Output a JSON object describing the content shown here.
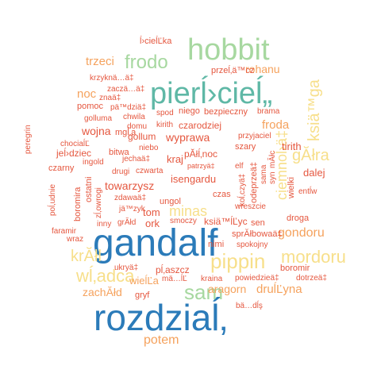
{
  "palette": {
    "blue": "#2b7bb9",
    "green": "#a7d8a0",
    "teal": "#5fb8a6",
    "yellow": "#f7df8a",
    "orange": "#f5a25d",
    "red": "#e5573f"
  },
  "words": [
    {
      "text": "gandalf",
      "color": "blue"
    },
    {
      "text": "rozdziaĺ‚",
      "color": "blue"
    },
    {
      "text": "pierĺ›cieĺ„",
      "color": "teal"
    },
    {
      "text": "hobbit",
      "color": "green"
    },
    {
      "text": "frodo",
      "color": "green"
    },
    {
      "text": "sam",
      "color": "green"
    },
    {
      "text": "pippin",
      "color": "yellow"
    },
    {
      "text": "mordoru",
      "color": "yellow"
    },
    {
      "text": "wĺ‚adca",
      "color": "yellow"
    },
    {
      "text": "krĂłl",
      "color": "yellow"
    },
    {
      "text": "minas",
      "color": "yellow"
    },
    {
      "text": "gĂłra",
      "color": "yellow"
    },
    {
      "text": "ksiä™ga",
      "color": "yellow"
    },
    {
      "text": "ciemnoĺ›ä‡",
      "color": "yellow"
    },
    {
      "text": "potem",
      "color": "orange"
    },
    {
      "text": "trzeci",
      "color": "orange"
    },
    {
      "text": "rohanu",
      "color": "orange"
    },
    {
      "text": "noc",
      "color": "orange"
    },
    {
      "text": "froda",
      "color": "orange"
    },
    {
      "text": "gondoru",
      "color": "orange"
    },
    {
      "text": "druĺĽyna",
      "color": "orange"
    },
    {
      "text": "aragorn",
      "color": "orange"
    },
    {
      "text": "zachĂłd",
      "color": "orange"
    },
    {
      "text": "wieĺĽa",
      "color": "orange"
    },
    {
      "text": "ĺ›cieĺĽka",
      "color": "red"
    },
    {
      "text": "przeĺ‚ä™cz",
      "color": "red"
    },
    {
      "text": "krzyknä…ä‡",
      "color": "red"
    },
    {
      "text": "zaczä…ä‡",
      "color": "red"
    },
    {
      "text": "znaä‡",
      "color": "red"
    },
    {
      "text": "pomoc",
      "color": "red"
    },
    {
      "text": "pä™dziä‡",
      "color": "red"
    },
    {
      "text": "golluma",
      "color": "red"
    },
    {
      "text": "chwila",
      "color": "red"
    },
    {
      "text": "domu",
      "color": "red"
    },
    {
      "text": "kirith",
      "color": "red"
    },
    {
      "text": "spod",
      "color": "red"
    },
    {
      "text": "niego",
      "color": "red"
    },
    {
      "text": "bezpieczny",
      "color": "red"
    },
    {
      "text": "brama",
      "color": "red"
    },
    {
      "text": "wojna",
      "color": "red"
    },
    {
      "text": "mgĺ‚a",
      "color": "red"
    },
    {
      "text": "czarodziej",
      "color": "red"
    },
    {
      "text": "gollum",
      "color": "red"
    },
    {
      "text": "wyprawa",
      "color": "red"
    },
    {
      "text": "przyjaciel",
      "color": "red"
    },
    {
      "text": "chociaĺĽ",
      "color": "red"
    },
    {
      "text": "jeĺ›dziec",
      "color": "red"
    },
    {
      "text": "bitwa",
      "color": "red"
    },
    {
      "text": "niebo",
      "color": "red"
    },
    {
      "text": "pĂłĺ‚noc",
      "color": "red"
    },
    {
      "text": "szary",
      "color": "red"
    },
    {
      "text": "tirith",
      "color": "red"
    },
    {
      "text": "ingold",
      "color": "red"
    },
    {
      "text": "jechaä‡",
      "color": "red"
    },
    {
      "text": "kraj",
      "color": "red"
    },
    {
      "text": "patrzyä‡",
      "color": "red"
    },
    {
      "text": "czarny",
      "color": "red"
    },
    {
      "text": "drugi",
      "color": "red"
    },
    {
      "text": "czwarta",
      "color": "red"
    },
    {
      "text": "isengardu",
      "color": "red"
    },
    {
      "text": "elf",
      "color": "red"
    },
    {
      "text": "dalej",
      "color": "red"
    },
    {
      "text": "towarzysz",
      "color": "red"
    },
    {
      "text": "czas",
      "color": "red"
    },
    {
      "text": "zdawaä‡",
      "color": "red"
    },
    {
      "text": "jä™zyk",
      "color": "red"
    },
    {
      "text": "ungol",
      "color": "red"
    },
    {
      "text": "wreszcie",
      "color": "red"
    },
    {
      "text": "droga",
      "color": "red"
    },
    {
      "text": "entĺw",
      "color": "red"
    },
    {
      "text": "tom",
      "color": "red"
    },
    {
      "text": "ork",
      "color": "red"
    },
    {
      "text": "smoczy",
      "color": "red"
    },
    {
      "text": "ksiä™ĺĽyc",
      "color": "red"
    },
    {
      "text": "sen",
      "color": "red"
    },
    {
      "text": "faramir",
      "color": "red"
    },
    {
      "text": "wraz",
      "color": "red"
    },
    {
      "text": "inny",
      "color": "red"
    },
    {
      "text": "grĂłd",
      "color": "red"
    },
    {
      "text": "sprĂłbowaä‡",
      "color": "red"
    },
    {
      "text": "nimi",
      "color": "red"
    },
    {
      "text": "spokojny",
      "color": "red"
    },
    {
      "text": "boromir",
      "color": "red"
    },
    {
      "text": "ukryä‡",
      "color": "red"
    },
    {
      "text": "pĺ‚aszcz",
      "color": "red"
    },
    {
      "text": "mä…ĺĽ",
      "color": "red"
    },
    {
      "text": "kraina",
      "color": "red"
    },
    {
      "text": "powiedzieä‡",
      "color": "red"
    },
    {
      "text": "dotrzeä‡",
      "color": "red"
    },
    {
      "text": "gryf",
      "color": "red"
    },
    {
      "text": "bä…dĺş",
      "color": "red"
    },
    {
      "text": "peregrin",
      "color": "red"
    },
    {
      "text": "poĺ‚udnie",
      "color": "red"
    },
    {
      "text": "boromira",
      "color": "red"
    },
    {
      "text": "ostatni",
      "color": "red"
    },
    {
      "text": "zĺ‚owrogi",
      "color": "red"
    },
    {
      "text": "koĺ‚czyä‡",
      "color": "red"
    },
    {
      "text": "odeprzeä‡",
      "color": "red"
    },
    {
      "text": "sama",
      "color": "red"
    },
    {
      "text": "wielki",
      "color": "red"
    },
    {
      "text": "syn",
      "color": "red"
    },
    {
      "text": "mĂłc",
      "color": "red"
    }
  ]
}
